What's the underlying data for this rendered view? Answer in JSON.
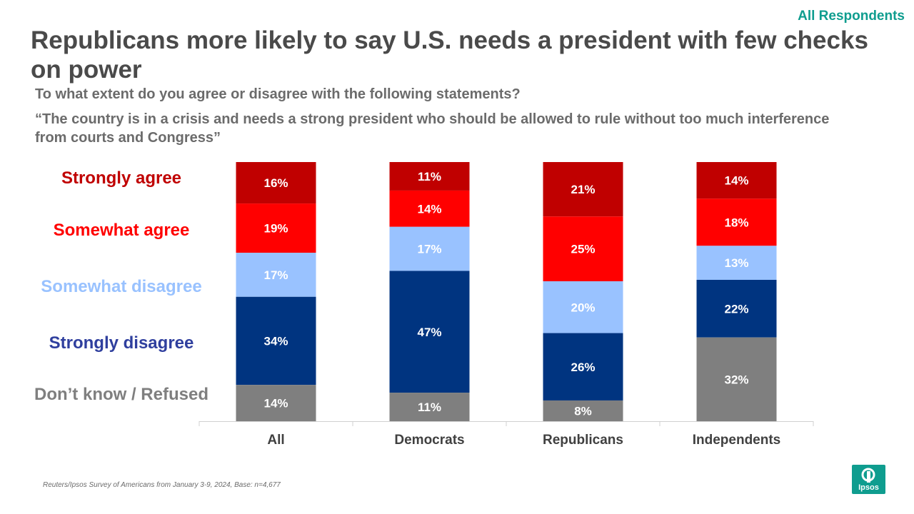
{
  "header": {
    "tag": "All Respondents",
    "title": "Republicans more likely to say U.S. needs a president with few checks on power",
    "question": "To what extent do you agree or disagree with the following statements?",
    "statement": "“The country is in a crisis and needs a strong president who should be allowed to rule without too much interference from courts and Congress”"
  },
  "footer": {
    "source": "Reuters/Ipsos Survey of Americans from January 3-9, 2024, Base: n=4,677",
    "logo": "Ipsos"
  },
  "colors": {
    "accent": "#0f9d8f"
  },
  "chart_data": {
    "type": "bar",
    "stacked": true,
    "categories": [
      "All",
      "Democrats",
      "Republicans",
      "Independents"
    ],
    "series": [
      {
        "name": "Strongly agree",
        "color": "#c00000",
        "label_color": "#c00000",
        "values": [
          16,
          11,
          21,
          14
        ]
      },
      {
        "name": "Somewhat agree",
        "color": "#ff0000",
        "label_color": "#ff0000",
        "values": [
          19,
          14,
          25,
          18
        ]
      },
      {
        "name": "Somewhat disagree",
        "color": "#99c2ff",
        "label_color": "#99c2ff",
        "values": [
          17,
          17,
          20,
          13
        ]
      },
      {
        "name": "Strongly disagree",
        "color": "#003480",
        "label_color": "#2f3f9e",
        "values": [
          34,
          47,
          26,
          22
        ]
      },
      {
        "name": "Don’t know / Refused",
        "color": "#7f7f7f",
        "label_color": "#7f7f7f",
        "values": [
          14,
          11,
          8,
          32
        ]
      }
    ],
    "value_suffix": "%",
    "ylim": [
      0,
      100
    ],
    "legend": "left"
  }
}
